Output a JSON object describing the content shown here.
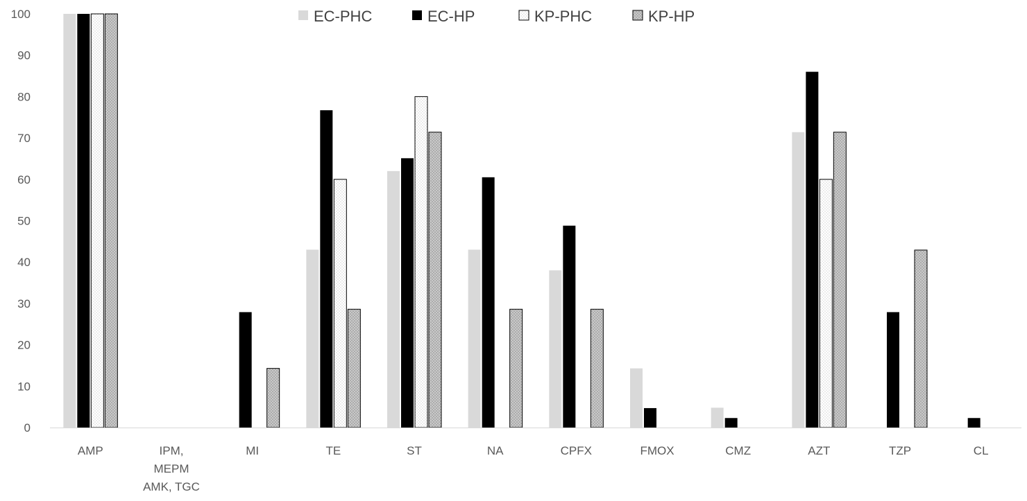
{
  "chart_data": {
    "type": "bar",
    "title": "",
    "xlabel": "",
    "ylabel": "",
    "ylim": [
      0,
      100
    ],
    "yticks": [
      0,
      10,
      20,
      30,
      40,
      50,
      60,
      70,
      80,
      90,
      100
    ],
    "grid": false,
    "legend_position": "top",
    "categories": [
      [
        "AMP"
      ],
      [
        "IPM,",
        "MEPM",
        "AMK, TGC"
      ],
      [
        "MI"
      ],
      [
        "TE"
      ],
      [
        "ST"
      ],
      [
        "NA"
      ],
      [
        "CPFX"
      ],
      [
        "FMOX"
      ],
      [
        "CMZ"
      ],
      [
        "AZT"
      ],
      [
        "TZP"
      ],
      [
        "CL"
      ]
    ],
    "series": [
      {
        "name": "EC-PHC",
        "color": "#d9d9d9",
        "pattern": "solid",
        "values": [
          100,
          0,
          0,
          43,
          62,
          43,
          38,
          14.3,
          4.8,
          71.4,
          0,
          0
        ]
      },
      {
        "name": "EC-HP",
        "color": "#000000",
        "pattern": "solid",
        "values": [
          100,
          0,
          27.9,
          76.7,
          65.1,
          60.5,
          48.8,
          4.7,
          2.3,
          86,
          27.9,
          2.3
        ]
      },
      {
        "name": "KP-PHC",
        "color": "#ffffff",
        "pattern": "light-dots",
        "values": [
          100,
          0,
          0,
          60,
          80,
          0,
          0,
          0,
          0,
          60,
          0,
          0
        ]
      },
      {
        "name": "KP-HP",
        "color": "#c8c8c8",
        "pattern": "dots",
        "values": [
          100,
          0,
          14.3,
          28.6,
          71.4,
          28.6,
          28.6,
          0,
          0,
          71.4,
          42.9,
          0
        ]
      }
    ]
  }
}
